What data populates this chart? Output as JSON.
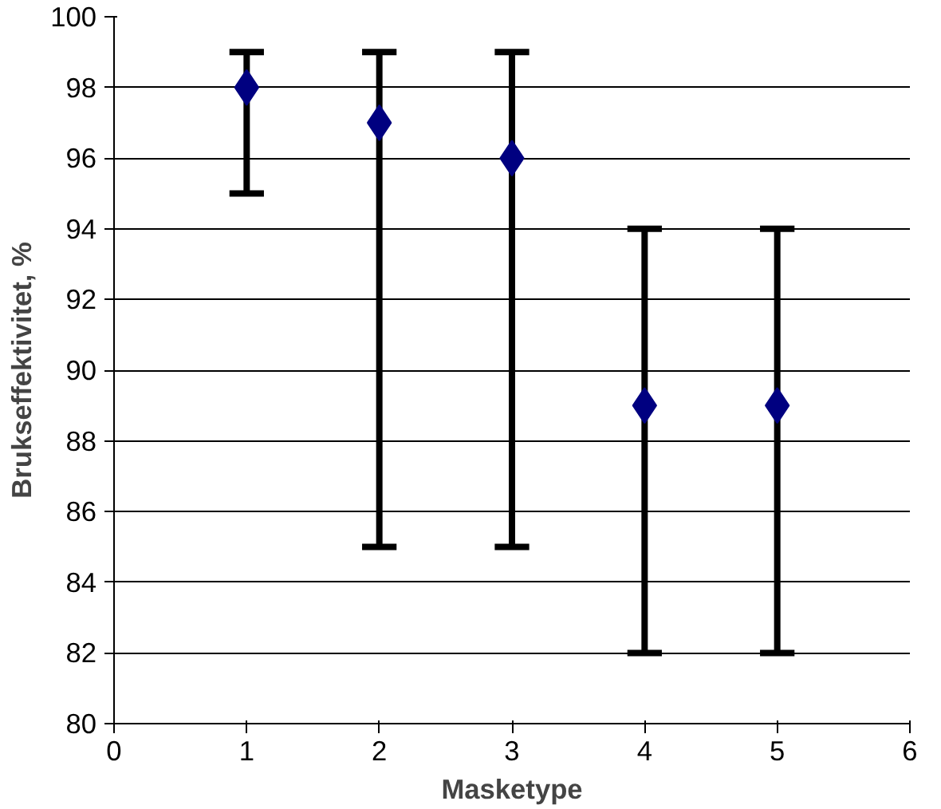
{
  "chart_data": {
    "type": "scatter",
    "xlabel": "Masketype",
    "ylabel": "Brukseffektivitet, %",
    "x": [
      1,
      2,
      3,
      4,
      5
    ],
    "series": [
      {
        "color": "#000080",
        "values": [
          98,
          97,
          96,
          89,
          89
        ],
        "errors": [
          [
            95,
            99
          ],
          [
            85,
            99
          ],
          [
            85,
            99
          ],
          [
            82,
            94
          ],
          [
            82,
            94
          ]
        ]
      }
    ],
    "xlim": [
      0,
      6
    ],
    "xticks": [
      0,
      1,
      2,
      3,
      4,
      5,
      6
    ],
    "ylim": [
      80,
      100
    ],
    "yticks": [
      80,
      82,
      84,
      86,
      88,
      90,
      92,
      94,
      96,
      98,
      100
    ],
    "grid": "y",
    "marker": "diamond"
  }
}
